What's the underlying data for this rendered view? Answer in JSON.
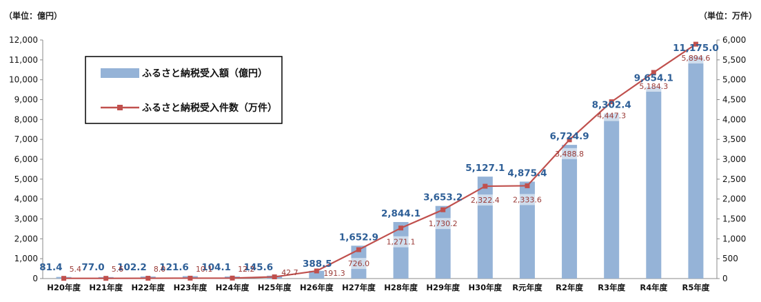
{
  "chart_data": {
    "type": "bar",
    "left_unit": "（単位：億円）",
    "right_unit": "（単位：万件）",
    "categories": [
      "H20年度",
      "H21年度",
      "H22年度",
      "H23年度",
      "H24年度",
      "H25年度",
      "H26年度",
      "H27年度",
      "H28年度",
      "H29年度",
      "H30年度",
      "R元年度",
      "R2年度",
      "R3年度",
      "R4年度",
      "R5年度"
    ],
    "series": [
      {
        "name": "ふるさと納税受入額（億円）",
        "type": "bar",
        "axis": "left",
        "color": "#95b3d7",
        "values": [
          81.4,
          77.0,
          102.2,
          121.6,
          104.1,
          145.6,
          388.5,
          1652.9,
          2844.1,
          3653.2,
          5127.1,
          4875.4,
          6724.9,
          8302.4,
          9654.1,
          11175.0
        ],
        "labels": [
          "81.4",
          "77.0",
          "102.2",
          "121.6",
          "104.1",
          "145.6",
          "388.5",
          "1,652.9",
          "2,844.1",
          "3,653.2",
          "5,127.1",
          "4,875.4",
          "6,724.9",
          "8,302.4",
          "9,654.1",
          "11,175.0"
        ]
      },
      {
        "name": "ふるさと納税受入件数（万件）",
        "type": "line",
        "axis": "right",
        "color": "#c0504d",
        "values": [
          5.4,
          5.6,
          8.0,
          10.1,
          12.2,
          42.7,
          191.3,
          726.0,
          1271.1,
          1730.2,
          2322.4,
          2333.6,
          3488.8,
          4447.3,
          5184.3,
          5894.6
        ],
        "labels": [
          "5.4",
          "5.6",
          "8.0",
          "10.1",
          "12.2",
          "42.7",
          "191.3",
          "726.0",
          "1,271.1",
          "1,730.2",
          "2,322.4",
          "2,333.6",
          "3,488.8",
          "4,447.3",
          "5,184.3",
          "5,894.6"
        ]
      }
    ],
    "y_left": {
      "ylim": [
        0,
        12000
      ],
      "ticks": [
        "0",
        "1,000",
        "2,000",
        "3,000",
        "4,000",
        "5,000",
        "6,000",
        "7,000",
        "8,000",
        "9,000",
        "10,000",
        "11,000",
        "12,000"
      ]
    },
    "y_right": {
      "ylim": [
        0,
        6000
      ],
      "ticks": [
        "0",
        "500",
        "1,000",
        "1,500",
        "2,000",
        "2,500",
        "3,000",
        "3,500",
        "4,000",
        "4,500",
        "5,000",
        "5,500",
        "6,000"
      ]
    },
    "legend_position": "top-left",
    "grid": false
  }
}
